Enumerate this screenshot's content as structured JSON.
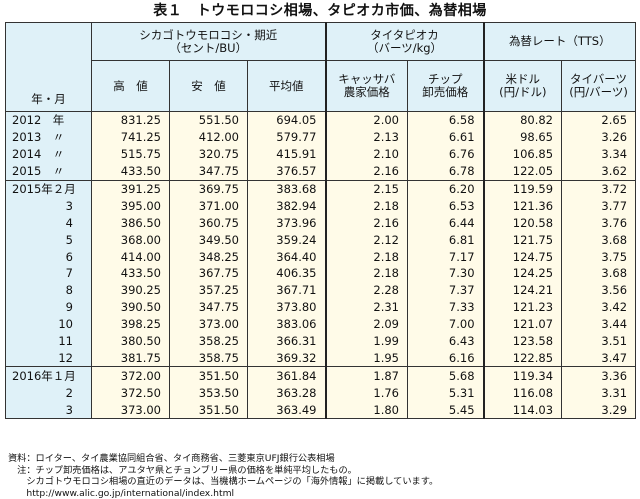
{
  "title": "表１　トウモロコシ相場、タピオカ市価、為替相場",
  "headers": {
    "corn_group": "シカゴトウモロコシ・期近",
    "corn_unit": "（セント/BU）",
    "tapioca_group": "タイタピオカ",
    "tapioca_unit": "（バーツ/kg）",
    "fx_group": "為替レート（TTS）",
    "year_month": "年・月",
    "high": "高　値",
    "low": "安　値",
    "avg": "平均値",
    "cassava_line1": "キャッサバ",
    "cassava_line2": "農家価格",
    "chip_line1": "チップ",
    "chip_line2": "卸売価格",
    "usd_line1": "米ドル",
    "usd_line2": "(円/ドル)",
    "thb_line1": "タイバーツ",
    "thb_line2": "(円/バーツ)"
  },
  "rows": [
    {
      "period": "2012　年",
      "indent": false,
      "values": [
        "831.25",
        "551.50",
        "694.05",
        "2.00",
        "6.58",
        "80.82",
        "2.65"
      ]
    },
    {
      "period": "2013　〃",
      "indent": false,
      "values": [
        "741.25",
        "412.00",
        "579.77",
        "2.13",
        "6.61",
        "98.65",
        "3.26"
      ]
    },
    {
      "period": "2014　〃",
      "indent": false,
      "values": [
        "515.75",
        "320.75",
        "415.91",
        "2.10",
        "6.76",
        "106.85",
        "3.34"
      ]
    },
    {
      "period": "2015　〃",
      "indent": false,
      "values": [
        "433.50",
        "347.75",
        "376.57",
        "2.16",
        "6.78",
        "122.05",
        "3.62"
      ]
    },
    {
      "period": "2015年２月",
      "indent": false,
      "values": [
        "391.25",
        "369.75",
        "383.68",
        "2.15",
        "6.20",
        "119.59",
        "3.72"
      ]
    },
    {
      "period": "3",
      "indent": true,
      "values": [
        "395.00",
        "371.00",
        "382.94",
        "2.18",
        "6.53",
        "121.36",
        "3.77"
      ]
    },
    {
      "period": "4",
      "indent": true,
      "values": [
        "386.50",
        "360.75",
        "373.96",
        "2.16",
        "6.44",
        "120.58",
        "3.76"
      ]
    },
    {
      "period": "5",
      "indent": true,
      "values": [
        "368.00",
        "349.50",
        "359.24",
        "2.12",
        "6.81",
        "121.75",
        "3.68"
      ]
    },
    {
      "period": "6",
      "indent": true,
      "values": [
        "414.00",
        "348.25",
        "364.40",
        "2.18",
        "7.17",
        "124.75",
        "3.75"
      ]
    },
    {
      "period": "7",
      "indent": true,
      "values": [
        "433.50",
        "367.75",
        "406.35",
        "2.18",
        "7.30",
        "124.25",
        "3.68"
      ]
    },
    {
      "period": "8",
      "indent": true,
      "values": [
        "390.25",
        "357.25",
        "367.71",
        "2.28",
        "7.37",
        "124.21",
        "3.56"
      ]
    },
    {
      "period": "9",
      "indent": true,
      "values": [
        "390.50",
        "347.75",
        "373.80",
        "2.31",
        "7.33",
        "121.23",
        "3.42"
      ]
    },
    {
      "period": "10",
      "indent": true,
      "values": [
        "398.25",
        "373.00",
        "383.06",
        "2.09",
        "7.00",
        "121.07",
        "3.44"
      ]
    },
    {
      "period": "11",
      "indent": true,
      "values": [
        "380.50",
        "358.25",
        "366.31",
        "1.99",
        "6.43",
        "123.58",
        "3.51"
      ]
    },
    {
      "period": "12",
      "indent": true,
      "values": [
        "381.75",
        "358.75",
        "369.32",
        "1.95",
        "6.16",
        "122.85",
        "3.47"
      ]
    },
    {
      "period": "2016年１月",
      "indent": false,
      "values": [
        "372.00",
        "351.50",
        "361.84",
        "1.87",
        "5.68",
        "119.34",
        "3.36"
      ]
    },
    {
      "period": "2",
      "indent": true,
      "values": [
        "372.50",
        "353.50",
        "363.28",
        "1.76",
        "5.31",
        "116.08",
        "3.31"
      ]
    },
    {
      "period": "3",
      "indent": true,
      "values": [
        "373.00",
        "351.50",
        "363.49",
        "1.80",
        "5.45",
        "114.03",
        "3.29"
      ]
    }
  ],
  "notes": [
    "資料：ロイター、タイ農業協同組合省、タイ商務省、三菱東京UFJ銀行公表相場",
    "　注：チップ卸売価格は、アユタヤ県とチョンブリー県の価格を単純平均したもの。",
    "　　シカゴトウモロコシ相場の直近のデータは、当機構ホームページの「海外情報」に掲載しています。",
    "　　http://www.alic.go.jp/international/index.html"
  ]
}
